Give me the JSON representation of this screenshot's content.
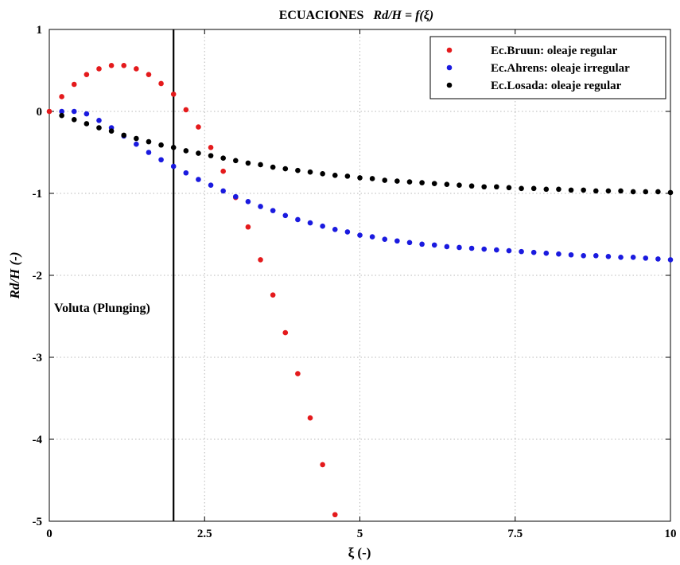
{
  "chart_data": {
    "type": "scatter",
    "title_prefix": "ECUACIONES",
    "title_formula": "Rd/H = f(ξ)",
    "xlabel": "ξ (-)",
    "ylabel": "Rd/H (-)",
    "xlim": [
      0,
      10
    ],
    "ylim": [
      -5,
      1
    ],
    "xticks": [
      0,
      2.5,
      5,
      7.5,
      10
    ],
    "xtick_labels": [
      "0",
      "2.5",
      "5",
      "7.5",
      "10"
    ],
    "yticks": [
      1,
      0,
      -1,
      -2,
      -3,
      -4,
      -5
    ],
    "ytick_labels": [
      "1",
      "0",
      "-1",
      "-2",
      "-3",
      "-4",
      "-5"
    ],
    "grid": true,
    "legend_position": "top-right",
    "vertical_line": {
      "x": 2,
      "color": "#000000"
    },
    "annotation": "Voluta (Plunging)",
    "series": [
      {
        "name": "Ec.Bruun: oleaje regular",
        "color": "#e41a1c",
        "x": [
          0,
          0.2,
          0.4,
          0.6,
          0.8,
          1.0,
          1.2,
          1.4,
          1.6,
          1.8,
          2.0,
          2.2,
          2.4,
          2.6,
          2.8,
          3.0,
          3.2,
          3.4,
          3.6,
          3.8,
          4.0,
          4.2,
          4.4,
          4.6
        ],
        "y": [
          0,
          0.18,
          0.33,
          0.45,
          0.52,
          0.56,
          0.56,
          0.52,
          0.45,
          0.34,
          0.21,
          0.02,
          -0.19,
          -0.44,
          -0.73,
          -1.05,
          -1.41,
          -1.81,
          -2.24,
          -2.7,
          -3.2,
          -3.74,
          -4.31,
          -4.92
        ]
      },
      {
        "name": "Ec.Ahrens: oleaje irregular",
        "color": "#1a1adf",
        "x": [
          0.2,
          0.4,
          0.6,
          0.8,
          1.0,
          1.2,
          1.4,
          1.6,
          1.8,
          2.0,
          2.2,
          2.4,
          2.6,
          2.8,
          3.0,
          3.2,
          3.4,
          3.6,
          3.8,
          4.0,
          4.2,
          4.4,
          4.6,
          4.8,
          5.0,
          5.2,
          5.4,
          5.6,
          5.8,
          6.0,
          6.2,
          6.4,
          6.6,
          6.8,
          7.0,
          7.2,
          7.4,
          7.6,
          7.8,
          8.0,
          8.2,
          8.4,
          8.6,
          8.8,
          9.0,
          9.2,
          9.4,
          9.6,
          9.8,
          10.0
        ],
        "y": [
          0.0,
          0.0,
          -0.03,
          -0.11,
          -0.2,
          -0.3,
          -0.4,
          -0.5,
          -0.59,
          -0.67,
          -0.75,
          -0.83,
          -0.9,
          -0.97,
          -1.04,
          -1.1,
          -1.16,
          -1.21,
          -1.27,
          -1.32,
          -1.36,
          -1.4,
          -1.44,
          -1.47,
          -1.51,
          -1.53,
          -1.56,
          -1.58,
          -1.6,
          -1.62,
          -1.63,
          -1.65,
          -1.66,
          -1.67,
          -1.68,
          -1.69,
          -1.7,
          -1.71,
          -1.72,
          -1.73,
          -1.74,
          -1.75,
          -1.76,
          -1.76,
          -1.77,
          -1.78,
          -1.78,
          -1.79,
          -1.8,
          -1.81
        ]
      },
      {
        "name": "Ec.Losada: oleaje regular",
        "color": "#000000",
        "x": [
          0.2,
          0.4,
          0.6,
          0.8,
          1.0,
          1.2,
          1.4,
          1.6,
          1.8,
          2.0,
          2.2,
          2.4,
          2.6,
          2.8,
          3.0,
          3.2,
          3.4,
          3.6,
          3.8,
          4.0,
          4.2,
          4.4,
          4.6,
          4.8,
          5.0,
          5.2,
          5.4,
          5.6,
          5.8,
          6.0,
          6.2,
          6.4,
          6.6,
          6.8,
          7.0,
          7.2,
          7.4,
          7.6,
          7.8,
          8.0,
          8.2,
          8.4,
          8.6,
          8.8,
          9.0,
          9.2,
          9.4,
          9.6,
          9.8,
          10.0
        ],
        "y": [
          -0.05,
          -0.1,
          -0.15,
          -0.2,
          -0.24,
          -0.29,
          -0.33,
          -0.37,
          -0.41,
          -0.44,
          -0.48,
          -0.51,
          -0.54,
          -0.57,
          -0.6,
          -0.63,
          -0.65,
          -0.68,
          -0.7,
          -0.72,
          -0.74,
          -0.76,
          -0.78,
          -0.79,
          -0.81,
          -0.82,
          -0.84,
          -0.85,
          -0.86,
          -0.87,
          -0.88,
          -0.89,
          -0.9,
          -0.91,
          -0.92,
          -0.92,
          -0.93,
          -0.94,
          -0.94,
          -0.95,
          -0.95,
          -0.96,
          -0.96,
          -0.97,
          -0.97,
          -0.97,
          -0.98,
          -0.98,
          -0.98,
          -0.99
        ]
      }
    ]
  }
}
